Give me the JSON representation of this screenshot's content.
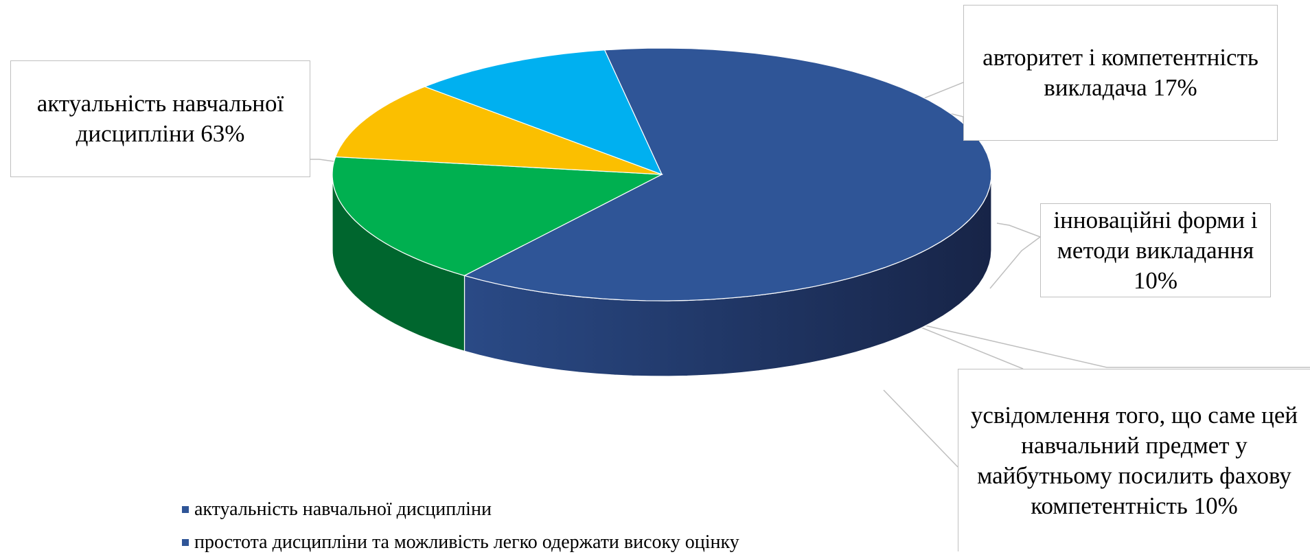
{
  "chart_data": {
    "type": "pie",
    "title": "",
    "slices": [
      {
        "label": "актуальність навчальної дисципліни",
        "value": 63,
        "color": "#2f5597"
      },
      {
        "label": "авторитет і компетентність викладача",
        "value": 17,
        "color": "#00b050"
      },
      {
        "label": "інноваційні форми і методи викладання",
        "value": 10,
        "color": "#fbbf00"
      },
      {
        "label": "усвідомлення того, що саме цей навчальний предмет у майбутньому посилить фахову компетентність",
        "value": 10,
        "color": "#00b0f0"
      }
    ],
    "data_labels": [
      {
        "text": "актуальність навчальної дисципліни 63%"
      },
      {
        "text": "авторитет і компетентність викладача 17%"
      },
      {
        "text": "інноваційні форми і методи викладання 10%"
      },
      {
        "text": "усвідомлення того, що саме цей навчальний предмет у майбутньому посилить фахову компетентність 10%"
      }
    ],
    "legend": [
      {
        "label": "актуальність навчальної дисципліни",
        "color": "#2f5597"
      },
      {
        "label": "простота дисципліни та можливість легко одержати високу оцінку",
        "color": "#2f5597"
      }
    ]
  }
}
